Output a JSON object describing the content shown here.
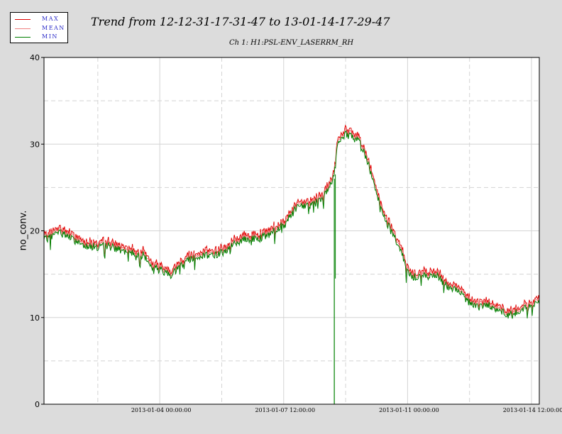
{
  "legend": [
    {
      "label": "MAX",
      "color": "#e00000"
    },
    {
      "label": "MEAN",
      "color": "#f08080"
    },
    {
      "label": "MIN",
      "color": "#008000"
    }
  ],
  "chart_data": {
    "type": "line",
    "title": "Trend from 12-12-31-17-31-47 to 13-01-14-17-29-47",
    "subtitle": "Ch 1: H1:PSL-ENV_LASERRM_RH",
    "xlabel": "",
    "ylabel": "no_conv.",
    "ylim": [
      0,
      40
    ],
    "xlim": [
      "2012-12-31 17:31:47",
      "2013-01-14 17:29:47"
    ],
    "x_unit": "days",
    "yticks": [
      0,
      10,
      20,
      30,
      40
    ],
    "xticks": [
      {
        "label": "2013-01-04 00:00:00",
        "days": 3.27
      },
      {
        "label": "2013-01-07 12:00:00",
        "days": 6.77
      },
      {
        "label": "2013-01-11 00:00:00",
        "days": 10.27
      },
      {
        "label": "2013-01-14 12:00:00",
        "days": 13.77
      }
    ],
    "grid": true,
    "legend_position": "top-left",
    "colors": {
      "max": "#e00000",
      "mean": "#f08080",
      "min": "#008000"
    },
    "dropout": {
      "x": 8.2,
      "y": 0
    },
    "series": [
      {
        "name": "MIN",
        "x": [
          0.0,
          0.2,
          0.4,
          0.6,
          0.8,
          1.0,
          1.2,
          1.5,
          1.8,
          2.1,
          2.3,
          2.5,
          2.8,
          3.0,
          3.2,
          3.4,
          3.6,
          3.8,
          4.0,
          4.2,
          4.5,
          4.8,
          5.1,
          5.4,
          5.7,
          6.0,
          6.3,
          6.6,
          6.9,
          7.2,
          7.5,
          7.8,
          8.0,
          8.2,
          8.3,
          8.5,
          8.7,
          8.9,
          9.1,
          9.3,
          9.5,
          9.7,
          9.9,
          10.1,
          10.3,
          10.5,
          10.7,
          10.9,
          11.1,
          11.3,
          11.5,
          11.7,
          11.9,
          12.1,
          12.3,
          12.5,
          12.7,
          12.9,
          13.1,
          13.3,
          13.5,
          13.7,
          13.99
        ],
        "values": [
          18.9,
          19.3,
          19.8,
          19.6,
          19.0,
          18.6,
          18.3,
          18.1,
          18.3,
          17.9,
          17.4,
          17.5,
          17.2,
          16.1,
          15.6,
          15.3,
          14.9,
          15.8,
          16.6,
          16.9,
          17.1,
          17.2,
          17.6,
          18.5,
          19.0,
          19.1,
          19.4,
          20.2,
          21.4,
          23.0,
          22.9,
          23.5,
          24.5,
          26.5,
          30.0,
          31.2,
          30.8,
          30.4,
          28.5,
          25.8,
          22.8,
          20.8,
          19.2,
          17.6,
          15.0,
          14.6,
          14.9,
          14.6,
          14.9,
          13.8,
          13.4,
          13.1,
          12.1,
          11.6,
          11.2,
          11.6,
          11.1,
          10.8,
          10.3,
          10.4,
          10.9,
          11.2,
          11.8
        ]
      }
    ]
  }
}
